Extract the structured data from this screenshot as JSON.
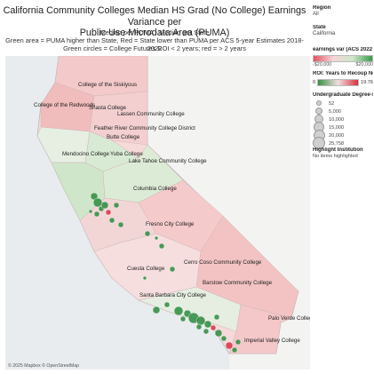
{
  "header": {
    "title_line1": "California Community Colleges Median HS Grad (No College) Earnings Variance per",
    "title_line2": "Public Use Microdata Area (PUMA)",
    "subtitle1": "Median per PUMA - Median per State",
    "subtitle2": "Green area = PUMA higher than State, Red = State lower than PUMA per ACS 5-year Estimates 2018-2022",
    "subtitle3": "Green circles = College Futures ROI < 2 years; red = > 2 years"
  },
  "map": {
    "copyright": "© 2025 Mapbox © OpenStreetMap",
    "college_labels": [
      {
        "name": "College of the Siskiyous"
      },
      {
        "name": "College of the Redwoods"
      },
      {
        "name": "Shasta College"
      },
      {
        "name": "Lassen Community College"
      },
      {
        "name": "Feather River Community College District"
      },
      {
        "name": "Butte College"
      },
      {
        "name": "Mendocino College"
      },
      {
        "name": "Yuba College"
      },
      {
        "name": "Lake Tahoe Community College"
      },
      {
        "name": "Columbia College"
      },
      {
        "name": "Fresno City College"
      },
      {
        "name": "Cerro Coso Community College"
      },
      {
        "name": "Cuesta College"
      },
      {
        "name": "Barstow Community College"
      },
      {
        "name": "Santa Barbara City College"
      },
      {
        "name": "Palo Verde College"
      },
      {
        "name": "Imperial Valley College"
      }
    ],
    "colors": {
      "green": "#2e8b3e",
      "red": "#d8303f",
      "mid": "#f7d3d3"
    }
  },
  "panel": {
    "region_label": "Region",
    "region_value": "All",
    "state_label": "State",
    "state_value": "California",
    "earnings_label": "earnings var (ACS 2022 E...",
    "earnings_min": "-$20,000",
    "earnings_max": "$20,000",
    "roi_label": "ROI: Years to Recoup Net ...",
    "roi_min": "0",
    "roi_max": "19.76",
    "size_label": "Undergraduate Degree-s...",
    "sizes": [
      "52",
      "5,000",
      "10,000",
      "15,000",
      "20,000",
      "25,758"
    ],
    "highlight_label": "Highlight Institution",
    "highlight_value": "No items highlighted"
  }
}
